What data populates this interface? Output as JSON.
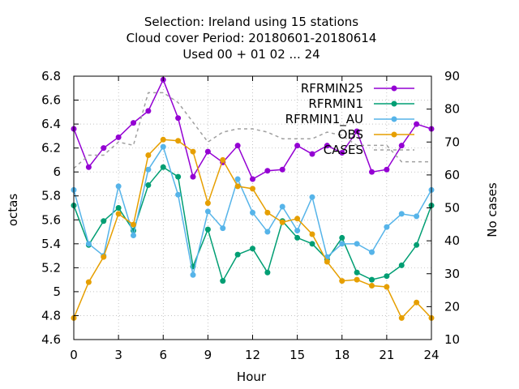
{
  "chart_data": {
    "type": "line",
    "title_lines": [
      "Selection: Ireland using    15 stations",
      "Cloud cover   Period: 20180601-20180614",
      "Used  00 + 01 02 ... 24"
    ],
    "xlabel": "Hour",
    "ylabel": "octas",
    "y2label": "No cases",
    "xlim": [
      0,
      24
    ],
    "ylim": [
      4.6,
      6.8
    ],
    "y2lim": [
      10,
      90
    ],
    "x_ticks": [
      0,
      3,
      6,
      9,
      12,
      15,
      18,
      21,
      24
    ],
    "y_ticks": [
      "4.6",
      "4.8",
      "5",
      "5.2",
      "5.4",
      "5.6",
      "5.8",
      "6",
      "6.2",
      "6.4",
      "6.6",
      "6.8"
    ],
    "y2_ticks": [
      10,
      20,
      30,
      40,
      50,
      60,
      70,
      80,
      90
    ],
    "x": [
      0,
      1,
      2,
      3,
      4,
      5,
      6,
      7,
      8,
      9,
      10,
      11,
      12,
      13,
      14,
      15,
      16,
      17,
      18,
      19,
      20,
      21,
      22,
      23,
      24
    ],
    "legend_position": "top-right",
    "series": [
      {
        "name": "RFRMIN25",
        "color": "#9400d3",
        "marker": "circle",
        "axis": "y",
        "values": [
          6.36,
          6.04,
          6.2,
          6.29,
          6.41,
          6.51,
          6.77,
          6.45,
          5.96,
          6.17,
          6.08,
          6.22,
          5.94,
          6.01,
          6.02,
          6.22,
          6.15,
          6.22,
          6.16,
          6.34,
          6.0,
          6.02,
          6.22,
          6.4,
          6.36
        ]
      },
      {
        "name": "RFRMIN1",
        "color": "#009e73",
        "marker": "circle",
        "axis": "y",
        "values": [
          5.72,
          5.39,
          5.59,
          5.7,
          5.51,
          5.89,
          6.04,
          5.96,
          5.21,
          5.52,
          5.09,
          5.31,
          5.36,
          5.16,
          5.59,
          5.45,
          5.4,
          5.27,
          5.45,
          5.16,
          5.1,
          5.13,
          5.22,
          5.39,
          5.72
        ]
      },
      {
        "name": "RFRMIN1_AU",
        "color": "#56b4e9",
        "marker": "circle",
        "axis": "y",
        "values": [
          5.85,
          5.4,
          5.3,
          5.88,
          5.47,
          6.02,
          6.21,
          5.81,
          5.14,
          5.67,
          5.53,
          5.94,
          5.66,
          5.5,
          5.71,
          5.51,
          5.79,
          5.29,
          5.4,
          5.4,
          5.33,
          5.54,
          5.65,
          5.63,
          5.85
        ]
      },
      {
        "name": "OBS",
        "color": "#e69f00",
        "marker": "circle",
        "axis": "y",
        "values": [
          4.78,
          5.08,
          5.29,
          5.65,
          5.56,
          6.14,
          6.27,
          6.26,
          6.17,
          5.74,
          6.1,
          5.88,
          5.86,
          5.66,
          5.58,
          5.61,
          5.48,
          5.25,
          5.09,
          5.1,
          5.05,
          5.04,
          4.78,
          4.91,
          4.78
        ]
      },
      {
        "name": "CASES",
        "color": "#a0a0a0",
        "marker": "none",
        "dash": true,
        "axis": "y2",
        "values": [
          62,
          66,
          66,
          70,
          69,
          85,
          85,
          82,
          76,
          70,
          73,
          74,
          74,
          73,
          71,
          71,
          71,
          73,
          72,
          69,
          69,
          69,
          64,
          64,
          64
        ]
      }
    ]
  }
}
